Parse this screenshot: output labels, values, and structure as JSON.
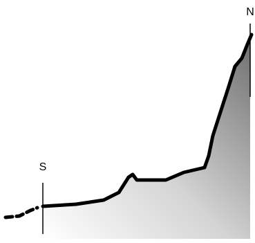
{
  "labels": {
    "start": "S",
    "end": "N"
  }
}
